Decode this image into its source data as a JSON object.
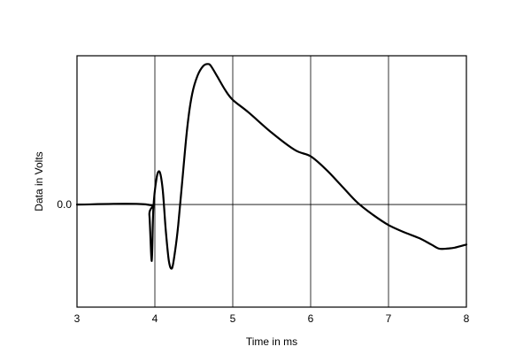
{
  "chart_data": {
    "type": "line",
    "title": "",
    "xlabel": "Time in ms",
    "ylabel": "Data in Volts",
    "xlim": [
      3,
      8
    ],
    "ylim": [
      -1.0,
      1.45
    ],
    "x_ticks": [
      3,
      4,
      5,
      6,
      7,
      8
    ],
    "x_tick_labels": [
      "3",
      "4",
      "5",
      "6",
      "7",
      "8"
    ],
    "y_ticks": [
      0.0
    ],
    "y_tick_labels": [
      "0.0"
    ],
    "grid": true,
    "line_color": "#000000",
    "series": [
      {
        "x": [
          3.0,
          3.9,
          3.93,
          3.96,
          3.98,
          4.02,
          4.06,
          4.1,
          4.14,
          4.18,
          4.22,
          4.26,
          4.3,
          4.36,
          4.42,
          4.48,
          4.55,
          4.62,
          4.68,
          4.72,
          4.8,
          4.9,
          5.0,
          5.2,
          5.5,
          5.8,
          6.0,
          6.2,
          6.4,
          6.6,
          6.8,
          7.0,
          7.2,
          7.4,
          7.55,
          7.65,
          7.75,
          7.85,
          8.0
        ],
        "y": [
          0.0,
          0.0,
          -0.1,
          -0.55,
          -0.05,
          0.25,
          0.32,
          0.15,
          -0.25,
          -0.55,
          -0.62,
          -0.45,
          -0.2,
          0.3,
          0.78,
          1.08,
          1.26,
          1.35,
          1.37,
          1.35,
          1.25,
          1.12,
          1.02,
          0.9,
          0.7,
          0.53,
          0.47,
          0.34,
          0.18,
          0.02,
          -0.1,
          -0.2,
          -0.27,
          -0.33,
          -0.39,
          -0.43,
          -0.43,
          -0.42,
          -0.39
        ]
      }
    ]
  }
}
